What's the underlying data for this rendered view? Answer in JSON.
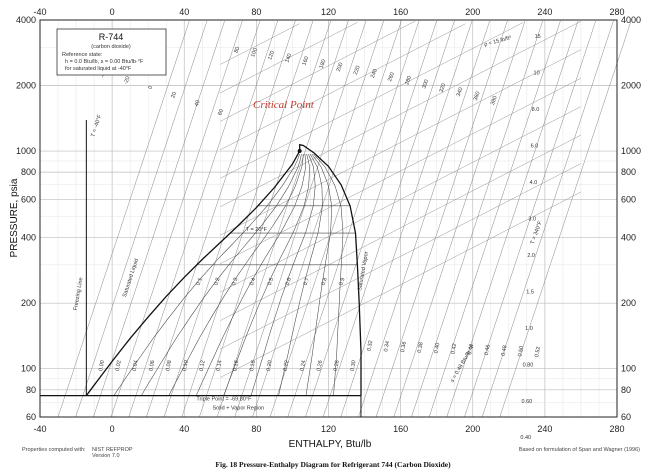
{
  "chart_data": {
    "type": "line",
    "x_axis": {
      "label": "ENTHALPY, Btu/lb",
      "range": [
        -40,
        280
      ],
      "ticks": [
        -40,
        0,
        40,
        80,
        120,
        160,
        200,
        240,
        280
      ]
    },
    "y_axis": {
      "label": "PRESSURE, psia",
      "scale": "log",
      "range": [
        60,
        4000
      ],
      "ticks": [
        60,
        80,
        100,
        200,
        400,
        600,
        800,
        1000,
        2000,
        4000
      ]
    },
    "grid": true,
    "saturation_dome": {
      "liquid": [
        [
          -14.3,
          75.2
        ],
        [
          -10,
          84
        ],
        [
          0,
          108
        ],
        [
          10,
          138
        ],
        [
          20,
          173
        ],
        [
          30,
          215
        ],
        [
          40,
          263
        ],
        [
          50,
          318
        ],
        [
          60,
          380
        ],
        [
          70,
          455
        ],
        [
          80,
          550
        ],
        [
          90,
          680
        ],
        [
          100,
          870
        ],
        [
          104,
          1000
        ]
      ],
      "vapor": [
        [
          138,
          75.2
        ],
        [
          138,
          120
        ],
        [
          137,
          200
        ],
        [
          136,
          300
        ],
        [
          135,
          420
        ],
        [
          132,
          560
        ],
        [
          127,
          700
        ],
        [
          120,
          850
        ],
        [
          112,
          980
        ],
        [
          106,
          1060
        ],
        [
          104,
          1070
        ]
      ]
    },
    "triple_point_pressure": 75.2,
    "quality_labels": [
      "0.1",
      "0.2",
      "0.3",
      "0.4",
      "0.5",
      "0.6",
      "0.7",
      "0.8",
      "0.9"
    ],
    "entropy_labels": [
      "0.00",
      "0.02",
      "0.04",
      "0.06",
      "0.08",
      "0.10",
      "0.12",
      "0.14",
      "0.16",
      "0.18",
      "0.20",
      "0.22",
      "0.24",
      "0.26",
      "0.28",
      "0.30",
      "0.32",
      "0.34",
      "0.36",
      "0.38",
      "0.40",
      "0.42",
      "0.44",
      "0.46",
      "0.48",
      "0.50",
      "0.52"
    ],
    "isotherm_labels": [
      "-60",
      "-40",
      "-20",
      "0",
      "20",
      "40",
      "60",
      "80",
      "100",
      "120",
      "140",
      "160",
      "180",
      "200",
      "220",
      "240",
      "260",
      "280",
      "300",
      "320",
      "340",
      "360",
      "380"
    ],
    "density_labels": [
      "15",
      "10",
      "8.0",
      "6.0",
      "4.0",
      "3.0",
      "2.0",
      "1.5",
      "1.0",
      "0.80",
      "0.60",
      "0.40"
    ],
    "annotations": {
      "critical_point": "Critical Point",
      "triple_point": "Triple Point = -69.80°F",
      "solid_vapor": "Solid + Vapor Region",
      "freezing_line": "Freezing Line",
      "saturated_liquid": "Saturated Liquid",
      "saturated_vapor": "Saturated Vapor",
      "t_minus40": "T = -40°F",
      "t_20": "T = 20°F",
      "t_340": "T = 340°F",
      "density_15": "ρ = 15 lb/ft³",
      "entropy_048": "s = 0.48 Btu/lb·°F"
    },
    "info_box": {
      "title": "R-744",
      "subtitle": "(carbon dioxide)",
      "line1": "Reference state:",
      "line2": "h = 0.0 Btu/lb,   s = 0.00 Btu/lb·°F",
      "line3": "for saturated liquid at -40°F"
    }
  },
  "footer": {
    "left_label": "Properties computed with:",
    "left_name": "NIST REFPROP",
    "left_version": "Version 7.0",
    "right": "Based on formulation of Span and Wagner (1996)"
  },
  "caption": "Fig. 18    Pressure-Enthalpy Diagram for Refrigerant 744 (Carbon Dioxide)"
}
